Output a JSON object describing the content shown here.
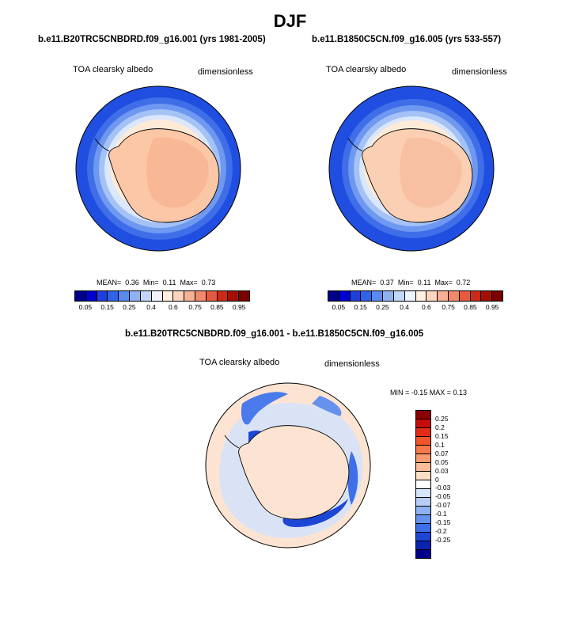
{
  "title": "DJF",
  "panels": [
    {
      "id": "case1",
      "title": "b.e11.B20TRC5CNBDRD.f09_g16.001 (yrs 1981-2005)",
      "variable": "TOA clearsky albedo",
      "units": "dimensionless",
      "stats": {
        "mean_label": "MEAN=",
        "mean": "0.36",
        "min_label": "Min=",
        "min": "0.11",
        "max_label": "Max=",
        "max": "0.73"
      }
    },
    {
      "id": "case2",
      "title": "b.e11.B1850C5CN.f09_g16.005 (yrs 533-557)",
      "variable": "TOA clearsky albedo",
      "units": "dimensionless",
      "stats": {
        "mean_label": "MEAN=",
        "mean": "0.37",
        "min_label": "Min=",
        "min": "0.11",
        "max_label": "Max=",
        "max": "0.72"
      }
    },
    {
      "id": "diff",
      "title": "b.e11.B20TRC5CNBDRD.f09_g16.001 - b.e11.B1850C5CN.f09_g16.005",
      "variable": "TOA clearsky albedo",
      "units": "dimensionless",
      "stats_text": "MIN = -0.15  MAX =  0.13"
    }
  ],
  "colorbar_main": {
    "colors": [
      "#00008b",
      "#0000cd",
      "#1e3fdc",
      "#2f64e8",
      "#5a8af0",
      "#8fb2f5",
      "#c3d6fa",
      "#eef3ff",
      "#fff0e0",
      "#fbd6bd",
      "#f6b193",
      "#f28a6a",
      "#e65a3f",
      "#cc2a14",
      "#a30f05",
      "#7a0000"
    ],
    "tick_labels": [
      "0.05",
      "0.15",
      "0.25",
      "0.4",
      "0.6",
      "0.75",
      "0.85",
      "0.95"
    ]
  },
  "colorbar_diff": {
    "colors": [
      "#8b0000",
      "#c80a0a",
      "#e52a18",
      "#f4542d",
      "#f7784a",
      "#f99b70",
      "#fbbd98",
      "#fde0c6",
      "#ffffff",
      "#d7e6fb",
      "#b5cdf7",
      "#8fb2f4",
      "#6692ef",
      "#3e6fe8",
      "#1c46d6",
      "#0a23b0",
      "#00008b"
    ],
    "tick_labels": [
      "0.25",
      "0.2",
      "0.15",
      "0.1",
      "0.07",
      "0.05",
      "0.03",
      "0",
      "-0.03",
      "-0.05",
      "-0.07",
      "-0.1",
      "-0.15",
      "-0.2",
      "-0.25"
    ]
  }
}
